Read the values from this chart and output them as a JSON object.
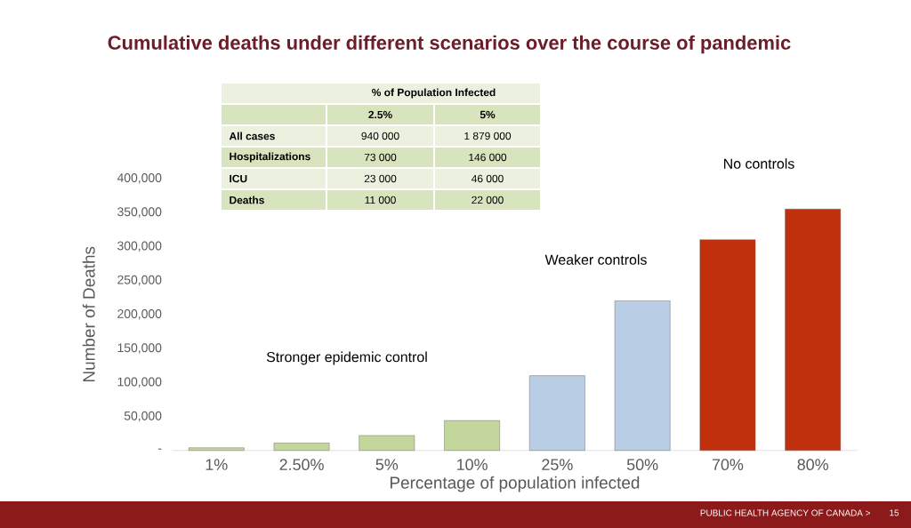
{
  "chart_data": [
    {
      "type": "bar",
      "title": "Cumulative deaths under different scenarios over the course of pandemic",
      "xlabel": "Percentage of population infected",
      "ylabel": "Number of Deaths",
      "categories": [
        "1%",
        "2.50%",
        "5%",
        "10%",
        "25%",
        "50%",
        "70%",
        "80%"
      ],
      "values": [
        4000,
        11000,
        22000,
        44000,
        110000,
        220000,
        310000,
        355000
      ],
      "colors": [
        "#c3d69b",
        "#c3d69b",
        "#c3d69b",
        "#c3d69b",
        "#b9cde5",
        "#b9cde5",
        "#c0300c",
        "#c0300c"
      ],
      "ylim": [
        0,
        400000
      ],
      "yticks": [
        {
          "value": 0,
          "label": "-"
        },
        {
          "value": 50000,
          "label": "50,000"
        },
        {
          "value": 100000,
          "label": "100,000"
        },
        {
          "value": 150000,
          "label": "150,000"
        },
        {
          "value": 200000,
          "label": "200,000"
        },
        {
          "value": 250000,
          "label": "250,000"
        },
        {
          "value": 300000,
          "label": "300,000"
        },
        {
          "value": 350000,
          "label": "350,000"
        },
        {
          "value": 400000,
          "label": "400,000"
        }
      ],
      "annotations": [
        "Stronger epidemic control",
        "Weaker controls",
        "No controls",
        "PUBLIC HEALTH AGENCY OF CANADA >",
        "15"
      ]
    },
    {
      "type": "other",
      "title": "% of Population Infected",
      "categories": [
        "2.5%",
        "5%"
      ],
      "y_categories": [
        "All cases",
        "Hospitalizations",
        "ICU",
        "Deaths"
      ],
      "cell_labels": [
        [
          "940 000",
          "1 879 000"
        ],
        [
          "73 000",
          "146 000"
        ],
        [
          "23 000",
          "46 000"
        ],
        [
          "11 000",
          "22 000"
        ]
      ]
    }
  ]
}
